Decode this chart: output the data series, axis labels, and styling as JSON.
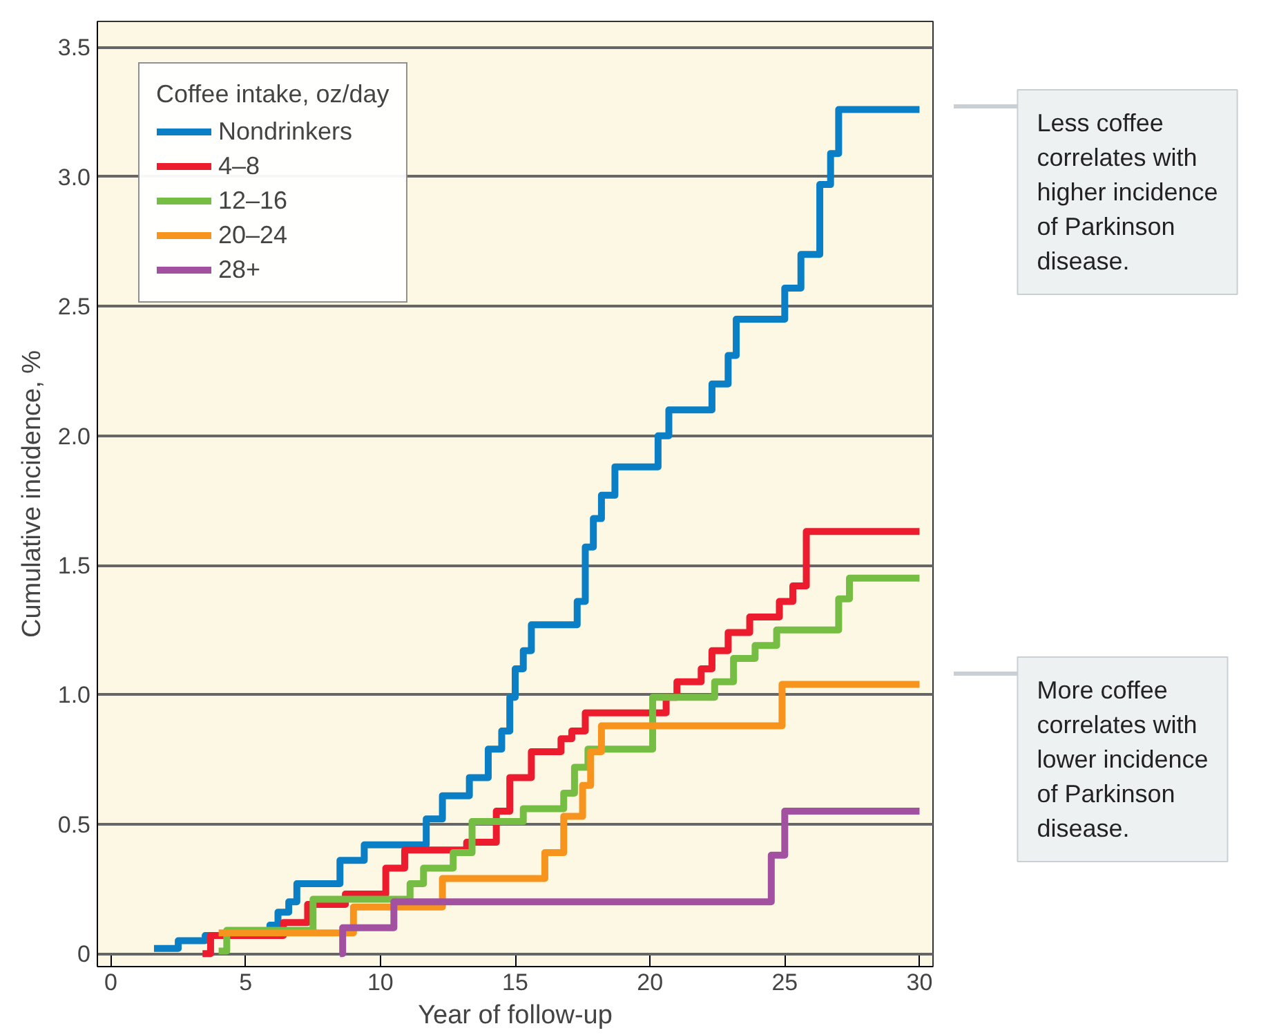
{
  "chart_data": {
    "type": "step",
    "xlabel": "Year of follow-up",
    "ylabel": "Cumulative incidence, %",
    "legend_title": "Coffee intake, oz/day",
    "xlim": [
      -0.5,
      30.5
    ],
    "ylim": [
      -0.05,
      3.6
    ],
    "xticks": [
      0,
      5,
      10,
      15,
      20,
      25,
      30
    ],
    "yticks": [
      0,
      0.5,
      {
        "value": 1,
        "label": "1.0"
      },
      1.5,
      {
        "value": 2,
        "label": "2.0"
      },
      2.5,
      {
        "value": 3,
        "label": "3.0"
      },
      3.5
    ],
    "grid": "y",
    "legend": "top left",
    "line_style": "solid",
    "series": [
      {
        "name": "Nondrinkers",
        "color": "#0a7fc5",
        "x": [
          1.6,
          2.5,
          3.5,
          5.9,
          6.2,
          6.6,
          6.9,
          8.5,
          9.4,
          11.7,
          12.3,
          13.3,
          14.0,
          14.5,
          14.8,
          15.0,
          15.3,
          15.6,
          17.3,
          17.6,
          17.9,
          18.2,
          18.7,
          20.3,
          20.7,
          22.3,
          22.9,
          23.2,
          25.0,
          25.6,
          26.3,
          26.7,
          27.0,
          30.0
        ],
        "values": [
          0.02,
          0.05,
          0.07,
          0.11,
          0.16,
          0.2,
          0.27,
          0.36,
          0.42,
          0.52,
          0.61,
          0.68,
          0.79,
          0.86,
          0.99,
          1.1,
          1.17,
          1.27,
          1.36,
          1.57,
          1.68,
          1.77,
          1.88,
          2.0,
          2.1,
          2.2,
          2.31,
          2.45,
          2.57,
          2.7,
          2.97,
          3.09,
          3.26,
          3.26
        ]
      },
      {
        "name": "4–8",
        "color": "#ec1c2e",
        "x": [
          3.4,
          3.7,
          6.4,
          7.3,
          8.7,
          10.2,
          10.9,
          13.2,
          14.3,
          14.8,
          15.6,
          16.7,
          17.1,
          17.6,
          20.6,
          21.0,
          21.9,
          22.3,
          22.9,
          23.7,
          24.8,
          25.3,
          25.8,
          30.0
        ],
        "values": [
          0.0,
          0.07,
          0.12,
          0.19,
          0.23,
          0.33,
          0.4,
          0.43,
          0.55,
          0.68,
          0.78,
          0.83,
          0.86,
          0.93,
          0.99,
          1.05,
          1.1,
          1.17,
          1.24,
          1.3,
          1.36,
          1.42,
          1.63,
          1.63
        ]
      },
      {
        "name": "12–16",
        "color": "#76bd43",
        "x": [
          4.0,
          4.3,
          7.5,
          11.1,
          11.6,
          12.7,
          13.4,
          15.3,
          16.8,
          17.2,
          17.7,
          20.1,
          22.4,
          23.1,
          23.9,
          24.7,
          27.0,
          27.4,
          30.0
        ],
        "values": [
          0.01,
          0.09,
          0.21,
          0.27,
          0.33,
          0.39,
          0.51,
          0.56,
          0.62,
          0.72,
          0.79,
          0.99,
          1.05,
          1.14,
          1.19,
          1.25,
          1.37,
          1.45,
          1.45
        ]
      },
      {
        "name": "20–24",
        "color": "#f7941d",
        "x": [
          4.0,
          9.0,
          12.3,
          16.1,
          16.8,
          17.5,
          17.8,
          18.2,
          24.9,
          30.0
        ],
        "values": [
          0.08,
          0.18,
          0.29,
          0.39,
          0.53,
          0.65,
          0.78,
          0.88,
          1.04,
          1.04
        ]
      },
      {
        "name": "28+",
        "color": "#a1519f",
        "x": [
          8.5,
          8.6,
          10.5,
          24.5,
          25.0,
          30.0
        ],
        "values": [
          0.0,
          0.1,
          0.2,
          0.38,
          0.55,
          0.55
        ]
      }
    ],
    "annotations": [
      "Less coffee\ncorrelates with\nhigher incidence\nof Parkinson\ndisease.",
      "More coffee\ncorrelates with\nlower incidence\nof Parkinson\ndisease."
    ]
  }
}
